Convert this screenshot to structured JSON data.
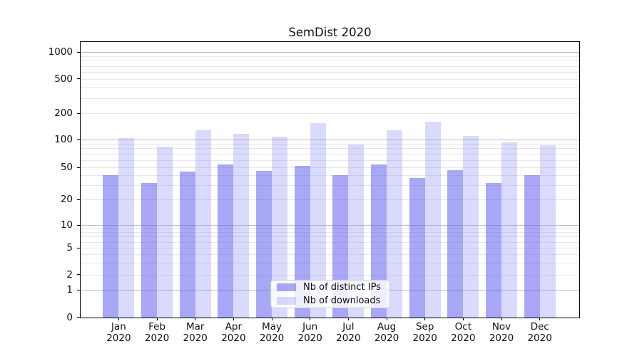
{
  "title": "SemDist 2020",
  "chart_data": {
    "type": "bar",
    "title": "SemDist 2020",
    "categories": [
      "Jan",
      "Feb",
      "Mar",
      "Apr",
      "May",
      "Jun",
      "Jul",
      "Aug",
      "Sep",
      "Oct",
      "Nov",
      "Dec"
    ],
    "category_year": "2020",
    "series": [
      {
        "name": "Nb of distinct IPs",
        "color": "rgba(100,100,240,0.56)",
        "values": [
          40,
          32,
          44,
          54,
          45,
          52,
          40,
          54,
          37,
          46,
          32,
          40
        ]
      },
      {
        "name": "Nb of downloads",
        "color": "rgba(150,150,245,0.35)",
        "values": [
          103,
          84,
          126,
          116,
          107,
          155,
          88,
          126,
          160,
          110,
          93,
          87
        ]
      }
    ],
    "y_axis": {
      "scale": "symlog",
      "ticks": [
        1000,
        500,
        200,
        100,
        50,
        20,
        10,
        5,
        2,
        1,
        0
      ],
      "major_gridline_values": [
        1,
        10,
        100,
        1000
      ],
      "minor_gridline_values": [
        2,
        3,
        4,
        5,
        6,
        7,
        8,
        9,
        20,
        30,
        40,
        50,
        60,
        70,
        80,
        90,
        200,
        300,
        400,
        500,
        600,
        700,
        800,
        900
      ],
      "ylim": [
        0,
        1000
      ]
    },
    "x_axis": {
      "label_line2": "2020"
    },
    "legend": {
      "position": "lower center",
      "items": [
        "Nb of distinct IPs",
        "Nb of downloads"
      ]
    },
    "grid": true
  },
  "colors": {
    "bar_distinct_ips": "rgba(100,100,240,0.56)",
    "bar_downloads": "rgba(150,150,245,0.35)",
    "major_grid": "#bababa",
    "minor_grid": "#e7e7e7",
    "axis_border": "#000000",
    "text": "#111111",
    "legend_border": "#cccccc"
  }
}
